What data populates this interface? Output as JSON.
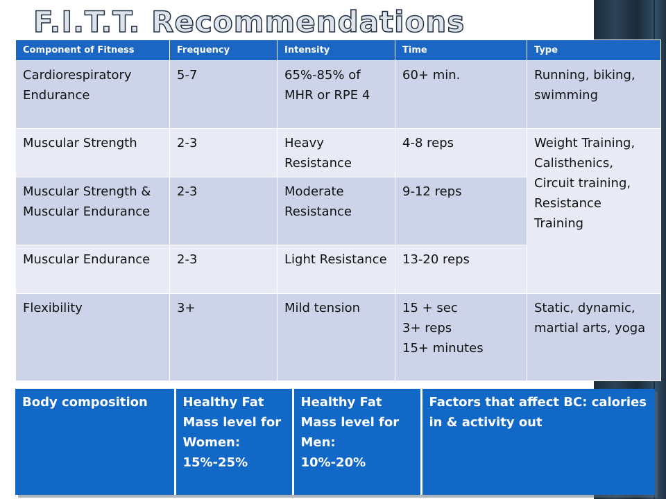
{
  "title": "F.I.T.T. Recommendations",
  "headers": [
    "Component of Fitness",
    "Frequency",
    "Intensity",
    "Time",
    "Type"
  ],
  "rows": [
    {
      "component": "Cardiorespiratory Endurance",
      "frequency": "5-7",
      "intensity": "65%-85% of MHR or RPE 4",
      "time": "60+ min.",
      "type": "Running, biking, swimming"
    },
    {
      "component": "Muscular Strength",
      "frequency": "2-3",
      "intensity": "Heavy Resistance",
      "time": "4-8 reps",
      "type": "Weight Training, Calisthenics, Circuit training, Resistance Training"
    },
    {
      "component": "Muscular Strength & Muscular Endurance",
      "frequency": "2-3",
      "intensity": "Moderate Resistance",
      "time": "9-12 reps"
    },
    {
      "component": "Muscular Endurance",
      "frequency": "2-3",
      "intensity": "Light Resistance",
      "time": "13-20 reps"
    },
    {
      "component": "Flexibility",
      "frequency": "3+",
      "intensity": "Mild tension",
      "time": "15 + sec\n3+ reps\n15+ minutes",
      "type": "Static, dynamic, martial arts, yoga"
    }
  ],
  "body_composition": {
    "label": "Body composition",
    "women": "Healthy Fat Mass level for Women:\n15%-25%",
    "men": "Healthy Fat Mass level for Men:\n10%-20%",
    "factors": "Factors that affect BC: calories in & activity out"
  },
  "colors": {
    "header": "#1a66c2",
    "row_dark": "#cdd4ea",
    "row_light": "#e8ebf5",
    "body_box": "#1268c6"
  }
}
